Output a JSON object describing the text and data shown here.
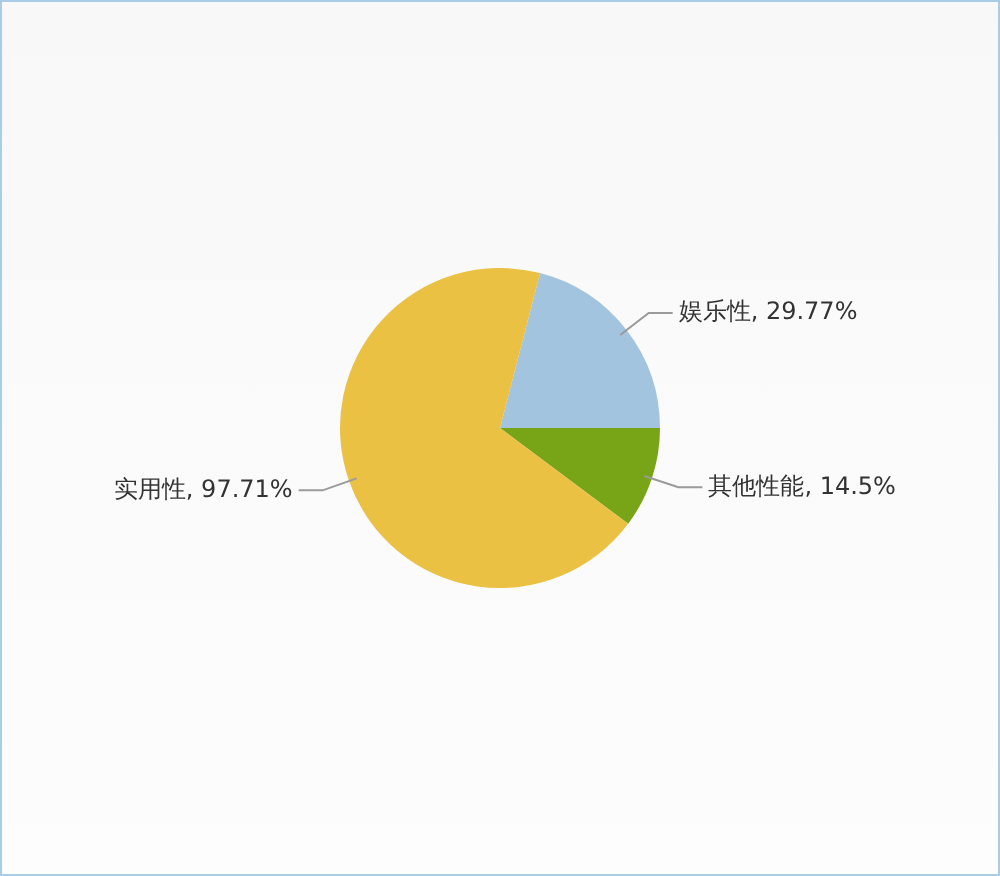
{
  "chart_data": {
    "type": "pie",
    "categories": [
      "娱乐性",
      "其他性能",
      "实用性"
    ],
    "values": [
      29.77,
      14.5,
      97.71
    ],
    "value_labels": [
      "29.77%",
      "14.5%",
      "97.71%"
    ],
    "colors": [
      "#a3c4de",
      "#78a518",
      "#ebc144"
    ]
  }
}
